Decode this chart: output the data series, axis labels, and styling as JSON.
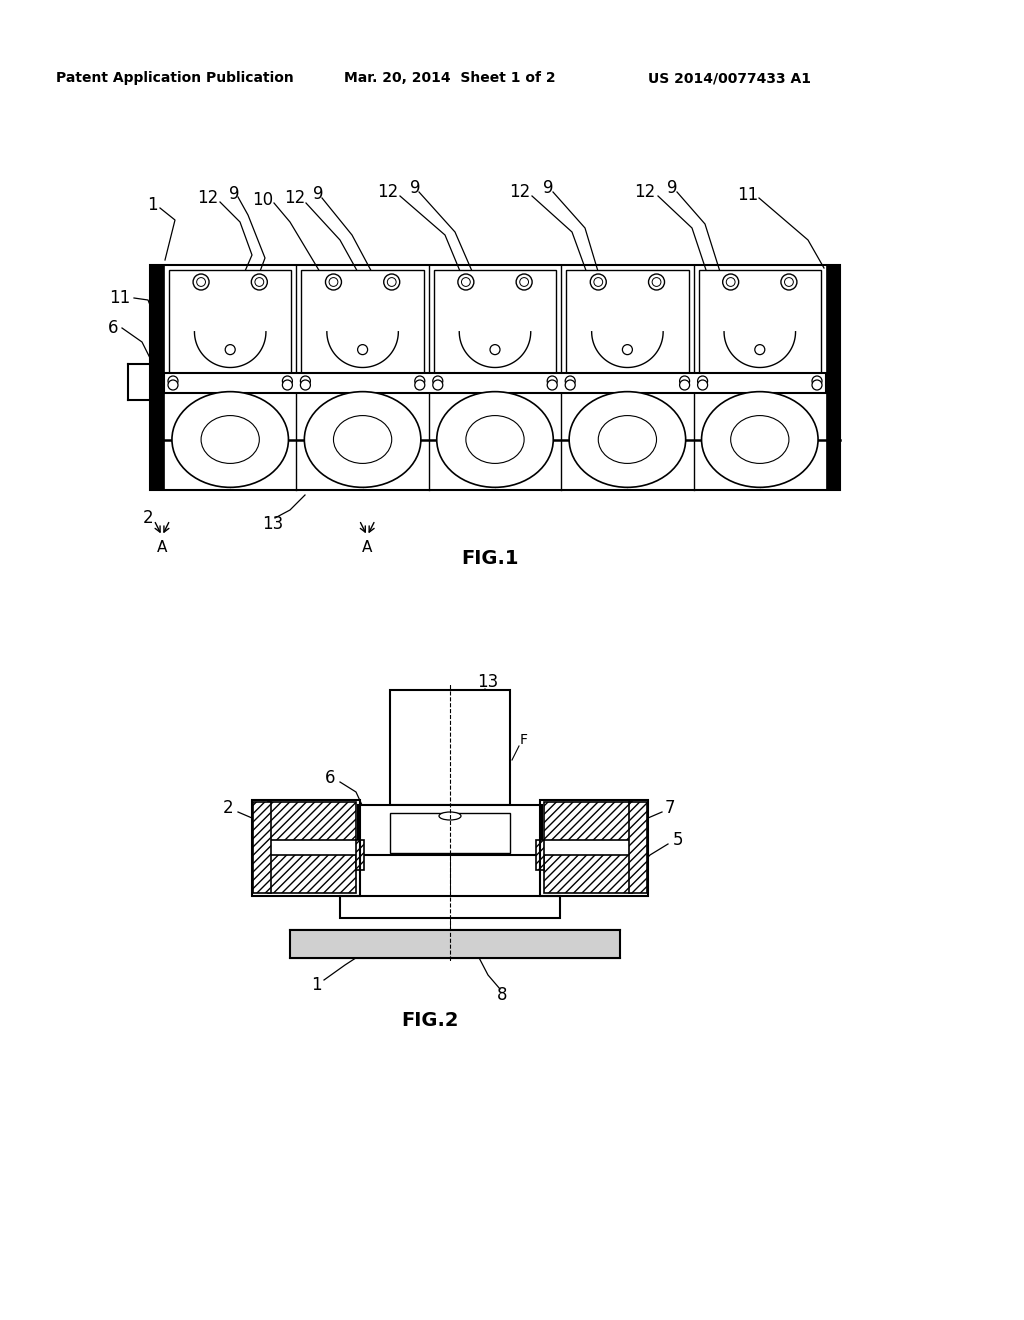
{
  "bg_color": "#ffffff",
  "line_color": "#000000",
  "header_left": "Patent Application Publication",
  "header_mid": "Mar. 20, 2014  Sheet 1 of 2",
  "header_right": "US 2014/0077433 A1",
  "fig1_label": "FIG.1",
  "fig2_label": "FIG.2",
  "fig_width": 10.24,
  "fig_height": 13.2
}
